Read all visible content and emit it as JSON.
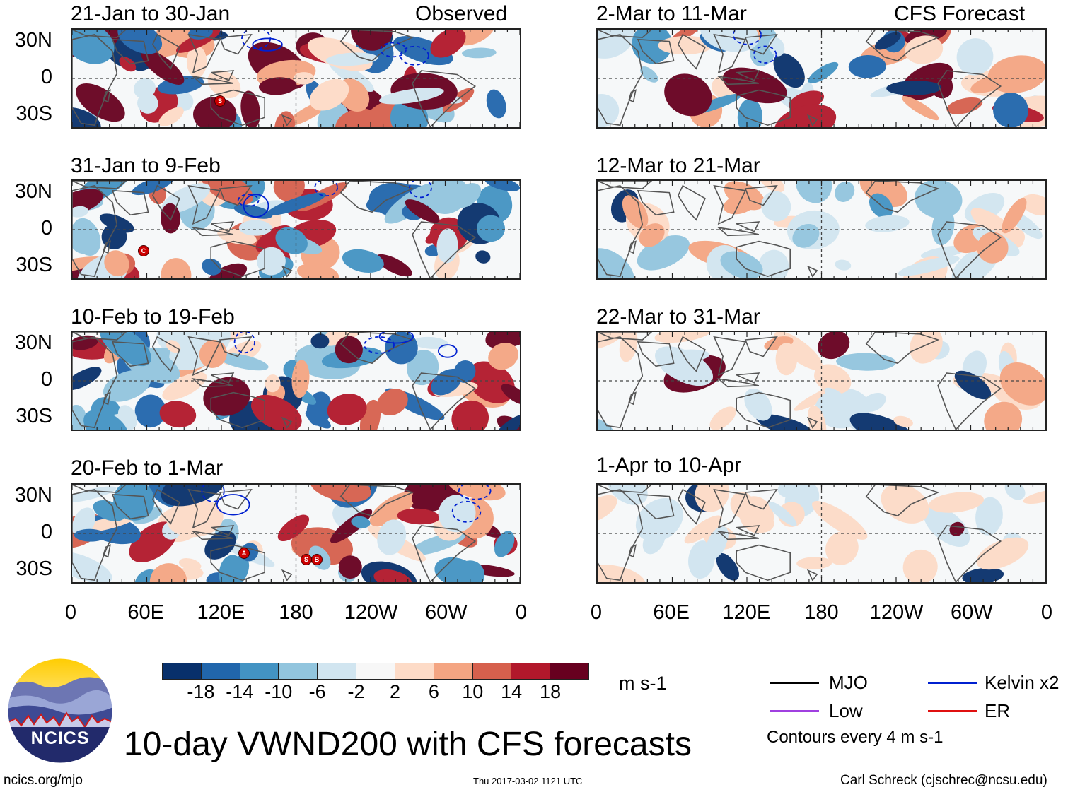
{
  "observed_label": "Observed",
  "forecast_label": "CFS Forecast",
  "observed_panels": [
    {
      "period": "21-Jan to 30-Jan"
    },
    {
      "period": "31-Jan to 9-Feb"
    },
    {
      "period": "10-Feb to 19-Feb"
    },
    {
      "period": "20-Feb to 1-Mar"
    }
  ],
  "forecast_panels": [
    {
      "period": "2-Mar to 11-Mar"
    },
    {
      "period": "12-Mar to 21-Mar"
    },
    {
      "period": "22-Mar to 31-Mar"
    },
    {
      "period": "1-Apr to 10-Apr"
    }
  ],
  "lat_labels": [
    "30N",
    "0",
    "30S"
  ],
  "lon_labels": [
    "0",
    "60E",
    "120E",
    "180",
    "120W",
    "60W",
    "0"
  ],
  "colorbar": {
    "ticks": [
      "-18",
      "-14",
      "-10",
      "-6",
      "-2",
      "2",
      "6",
      "10",
      "14",
      "18"
    ],
    "units": "m s-1",
    "colors": [
      "#08306b",
      "#2166ac",
      "#4393c3",
      "#92c5de",
      "#d1e5f0",
      "#f7f7f7",
      "#fddbc7",
      "#f4a582",
      "#d6604d",
      "#b2182b",
      "#67001f"
    ]
  },
  "legend": {
    "mjo": "MJO",
    "low": "Low",
    "kelvin": "Kelvin x2",
    "er": "ER",
    "contours_note": "Contours every 4 m s-1",
    "colors": {
      "mjo": "#000000",
      "low": "#a040e0",
      "kelvin": "#0020d0",
      "er": "#e01010"
    }
  },
  "title": "10-day VWND200 with CFS forecasts",
  "logo_text": "NCICS",
  "website": "ncics.org/mjo",
  "timestamp": "Thu 2017-03-02 1121 UTC",
  "author": "Carl Schreck (cjschrec@ncsu.edu)",
  "storm_markers": [
    {
      "panel": 0,
      "label": "S"
    },
    {
      "panel": 1,
      "label": "C"
    },
    {
      "panel": 3,
      "label": "A"
    },
    {
      "panel": 3,
      "label": "S"
    },
    {
      "panel": 3,
      "label": "B"
    }
  ]
}
